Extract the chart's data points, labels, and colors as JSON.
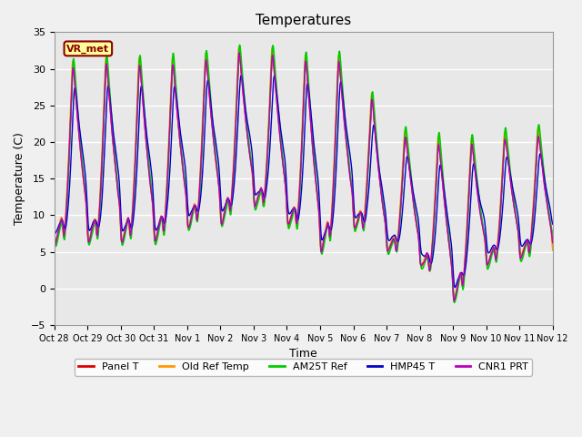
{
  "title": "Temperatures",
  "xlabel": "Time",
  "ylabel": "Temperature (C)",
  "ylim": [
    -5,
    35
  ],
  "annotation": "VR_met",
  "fig_bg": "#f0f0f0",
  "ax_bg": "#e8e8e8",
  "series_names": [
    "Panel T",
    "Old Ref Temp",
    "AM25T Ref",
    "HMP45 T",
    "CNR1 PRT"
  ],
  "series_colors": [
    "#dd0000",
    "#ff9900",
    "#00cc00",
    "#0000cc",
    "#bb00bb"
  ],
  "series_lw": [
    1.0,
    1.0,
    1.2,
    1.0,
    1.0
  ],
  "xtick_labels": [
    "Oct 28",
    "Oct 29",
    "Oct 30",
    "Oct 31",
    "Nov 1",
    "Nov 2",
    "Nov 3",
    "Nov 4",
    "Nov 5",
    "Nov 6",
    "Nov 7",
    "Nov 8",
    "Nov 9",
    "Nov 10",
    "Nov 11",
    "Nov 12"
  ],
  "yticks": [
    -5,
    0,
    5,
    10,
    15,
    20,
    25,
    30,
    35
  ],
  "days": 15
}
